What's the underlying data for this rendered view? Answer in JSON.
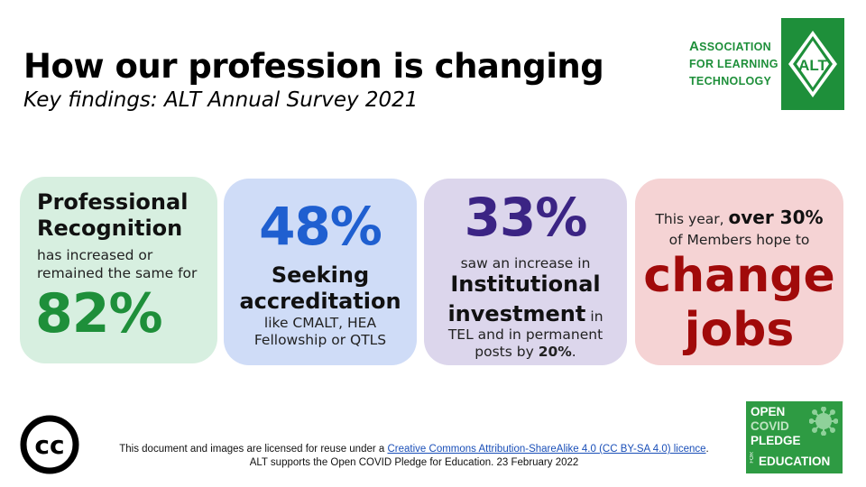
{
  "header": {
    "title": "How our profession is changing",
    "subtitle": "Key findings: ALT Annual Survey 2021"
  },
  "alt_logo": {
    "lines": [
      "Association",
      "for Learning",
      "Technology"
    ],
    "mark_text": "ALT",
    "color": "#1e8f3a"
  },
  "cards": {
    "professional_recognition": {
      "heading_line1": "Professional",
      "heading_line2": "Recognition",
      "body_line1": "has increased or",
      "body_line2": "remained the same for",
      "value": "82%",
      "bg_color": "#d7efe0",
      "accent": "#1e8f3a"
    },
    "accreditation": {
      "value": "48%",
      "heading_line1": "Seeking",
      "heading_line2": "accreditation",
      "body_line1": "like CMALT, HEA",
      "body_line2": "Fellowship or QTLS",
      "bg_color": "#cfdcf7",
      "accent": "#1f5fd0"
    },
    "investment": {
      "value": "33%",
      "small": "saw an increase in",
      "heading_line1": "Institutional",
      "heading_line2": "investment",
      "in": "in",
      "body_line1": "TEL and in permanent",
      "body_line2_pre": "posts by",
      "body_line2_value": "20%",
      "body_line2_post": ".",
      "bg_color": "#dcd6ec",
      "accent": "#3b2484"
    },
    "change_jobs": {
      "pre": "This year,",
      "emph": "over 30%",
      "line2": "of Members hope to",
      "big_line1": "change",
      "big_line2": "jobs",
      "bg_color": "#f5d3d4",
      "accent": "#a10a0a"
    }
  },
  "footer": {
    "cc_icon": "cc-icon",
    "cc_text": "cc",
    "license_pre": "This document and images are licensed for reuse under a",
    "license_link": "Creative Commons Attribution-ShareAlike 4.0 (CC BY-SA 4.0) licence",
    "license_post": ".",
    "line2": "ALT supports the Open COVID Pledge for Education. 23 February 2022"
  },
  "covid_badge": {
    "line1": "OPEN",
    "line2": "COVID",
    "line3": "PLEDGE",
    "for": "FOR",
    "line4": "EDUCATION",
    "icon": "virus-icon",
    "bg_color": "#2e9b43"
  }
}
